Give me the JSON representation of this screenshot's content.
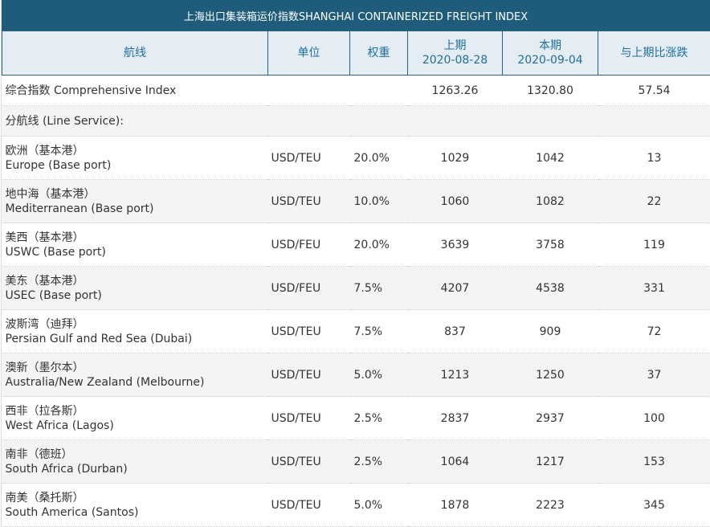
{
  "title": "上海出口集装箱运价指数SHANGHAI CONTAINERIZED FREIGHT INDEX",
  "headers": {
    "route": "航线",
    "unit": "单位",
    "weight": "权重",
    "prev_label": "上期",
    "prev_date": "2020-08-28",
    "curr_label": "本期",
    "curr_date": "2020-09-04",
    "change": "与上期比涨跌"
  },
  "composite": {
    "name": "综合指数 Comprehensive Index",
    "prev": "1263.26",
    "curr": "1320.80",
    "change": "57.54"
  },
  "line_service_label": "分航线 (Line Service):",
  "rows": [
    {
      "cn": "欧洲（基本港）",
      "en": "Europe (Base port)",
      "unit": "USD/TEU",
      "weight": "20.0%",
      "prev": "1029",
      "curr": "1042",
      "change": "13"
    },
    {
      "cn": "地中海（基本港）",
      "en": "Mediterranean (Base port)",
      "unit": "USD/TEU",
      "weight": "10.0%",
      "prev": "1060",
      "curr": "1082",
      "change": "22"
    },
    {
      "cn": "美西（基本港）",
      "en": "USWC (Base port)",
      "unit": "USD/FEU",
      "weight": "20.0%",
      "prev": "3639",
      "curr": "3758",
      "change": "119"
    },
    {
      "cn": "美东（基本港）",
      "en": "USEC (Base port)",
      "unit": "USD/FEU",
      "weight": "7.5%",
      "prev": "4207",
      "curr": "4538",
      "change": "331"
    },
    {
      "cn": "波斯湾（迪拜）",
      "en": "Persian Gulf and Red Sea (Dubai)",
      "unit": "USD/TEU",
      "weight": "7.5%",
      "prev": "837",
      "curr": "909",
      "change": "72"
    },
    {
      "cn": "澳新（墨尔本）",
      "en": "Australia/New Zealand (Melbourne)",
      "unit": "USD/TEU",
      "weight": "5.0%",
      "prev": "1213",
      "curr": "1250",
      "change": "37"
    },
    {
      "cn": "西非（拉各斯）",
      "en": "West Africa (Lagos)",
      "unit": "USD/TEU",
      "weight": "2.5%",
      "prev": "2837",
      "curr": "2937",
      "change": "100"
    },
    {
      "cn": "南非（德班）",
      "en": "South Africa (Durban)",
      "unit": "USD/TEU",
      "weight": "2.5%",
      "prev": "1064",
      "curr": "1217",
      "change": "153"
    },
    {
      "cn": "南美（桑托斯）",
      "en": "South America (Santos)",
      "unit": "USD/TEU",
      "weight": "5.0%",
      "prev": "1878",
      "curr": "2223",
      "change": "345"
    }
  ]
}
